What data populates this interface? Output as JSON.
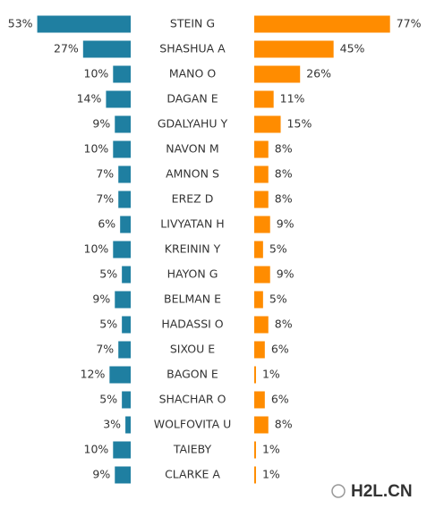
{
  "chart_data": {
    "type": "butterfly",
    "categories": [
      "STEIN G",
      "SHASHUA A",
      "MANO O",
      "DAGAN E",
      "GDALYAHU Y",
      "NAVON M",
      "AMNON S",
      "EREZ D",
      "LIVYATAN H",
      "KREININ Y",
      "HAYON G",
      "BELMAN E",
      "HADASSI O",
      "SIXOU E",
      "BAGON E",
      "SHACHAR O",
      "WOLFOVITA U",
      "TAIEBY",
      "CLARKE A"
    ],
    "series": [
      {
        "color": "#1f7fa1",
        "values": [
          53,
          27,
          10,
          14,
          9,
          10,
          7,
          7,
          6,
          10,
          5,
          9,
          5,
          7,
          12,
          5,
          3,
          10,
          9
        ],
        "value_labels": [
          "53%",
          "27%",
          "10%",
          "14%",
          "9%",
          "10%",
          "7%",
          "7%",
          "6%",
          "10%",
          "5%",
          "9%",
          "5%",
          "7%",
          "12%",
          "5%",
          "3%",
          "10%",
          "9%"
        ]
      },
      {
        "color": "#ff8c00",
        "values": [
          77,
          45,
          26,
          11,
          15,
          8,
          8,
          8,
          9,
          5,
          9,
          5,
          8,
          6,
          1,
          6,
          8,
          1,
          1
        ],
        "value_labels": [
          "77%",
          "45%",
          "26%",
          "11%",
          "15%",
          "8%",
          "8%",
          "8%",
          "9%",
          "5%",
          "9%",
          "5%",
          "8%",
          "6%",
          "1%",
          "6%",
          "8%",
          "1%",
          "1%"
        ]
      }
    ]
  },
  "watermark": "H2L.CN"
}
